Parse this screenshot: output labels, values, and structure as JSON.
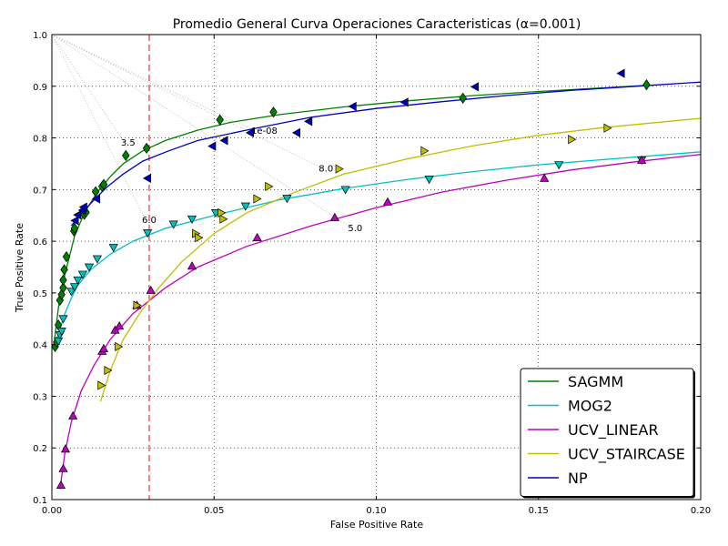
{
  "chart_data": {
    "type": "line",
    "title": "Promedio General Curva Operaciones Caracteristicas (α=0.001)",
    "xlabel": "False Positive Rate",
    "ylabel": "True Positive Rate",
    "xlim": [
      0.0,
      0.2
    ],
    "ylim": [
      0.1,
      1.0
    ],
    "xticks": [
      "0.00",
      "0.05",
      "0.10",
      "0.15",
      "0.20"
    ],
    "yticks": [
      "0.1",
      "0.2",
      "0.3",
      "0.4",
      "0.5",
      "0.6",
      "0.7",
      "0.8",
      "0.9",
      "1.0"
    ],
    "grid": true,
    "legend_position": "bottom-right",
    "vline": {
      "x": 0.03,
      "color": "#ff0000",
      "style": "dashed"
    },
    "series": [
      {
        "name": "SAGMM",
        "color": "#008000",
        "marker": "diamond",
        "curve": [
          [
            0.0005,
            0.39
          ],
          [
            0.001,
            0.42
          ],
          [
            0.002,
            0.47
          ],
          [
            0.003,
            0.51
          ],
          [
            0.005,
            0.56
          ],
          [
            0.007,
            0.61
          ],
          [
            0.01,
            0.655
          ],
          [
            0.014,
            0.695
          ],
          [
            0.018,
            0.725
          ],
          [
            0.022,
            0.75
          ],
          [
            0.028,
            0.775
          ],
          [
            0.035,
            0.795
          ],
          [
            0.045,
            0.815
          ],
          [
            0.055,
            0.83
          ],
          [
            0.07,
            0.845
          ],
          [
            0.09,
            0.86
          ],
          [
            0.11,
            0.872
          ],
          [
            0.13,
            0.882
          ],
          [
            0.15,
            0.89
          ],
          [
            0.17,
            0.897
          ],
          [
            0.184,
            0.902
          ]
        ],
        "points": [
          [
            0.001,
            0.396
          ],
          [
            0.0015,
            0.405
          ],
          [
            0.002,
            0.438
          ],
          [
            0.0025,
            0.486
          ],
          [
            0.003,
            0.497
          ],
          [
            0.0035,
            0.51
          ],
          [
            0.0035,
            0.525
          ],
          [
            0.0038,
            0.545
          ],
          [
            0.0045,
            0.57
          ],
          [
            0.0068,
            0.62
          ],
          [
            0.007,
            0.625
          ],
          [
            0.01,
            0.652
          ],
          [
            0.0105,
            0.656
          ],
          [
            0.0135,
            0.696
          ],
          [
            0.0155,
            0.706
          ],
          [
            0.016,
            0.71
          ],
          [
            0.0228,
            0.766
          ],
          [
            0.0292,
            0.78
          ],
          [
            0.0518,
            0.835
          ],
          [
            0.0683,
            0.85
          ],
          [
            0.1267,
            0.877
          ],
          [
            0.1833,
            0.903
          ]
        ]
      },
      {
        "name": "MOG2",
        "color": "#00bfbf",
        "marker": "triangle-down",
        "curve": [
          [
            0.001,
            0.39
          ],
          [
            0.002,
            0.42
          ],
          [
            0.004,
            0.46
          ],
          [
            0.006,
            0.49
          ],
          [
            0.008,
            0.515
          ],
          [
            0.012,
            0.545
          ],
          [
            0.018,
            0.575
          ],
          [
            0.025,
            0.6
          ],
          [
            0.035,
            0.625
          ],
          [
            0.05,
            0.65
          ],
          [
            0.07,
            0.68
          ],
          [
            0.09,
            0.702
          ],
          [
            0.11,
            0.72
          ],
          [
            0.13,
            0.735
          ],
          [
            0.15,
            0.748
          ],
          [
            0.17,
            0.758
          ],
          [
            0.2,
            0.773
          ]
        ],
        "points": [
          [
            0.002,
            0.407
          ],
          [
            0.0025,
            0.419
          ],
          [
            0.003,
            0.426
          ],
          [
            0.0035,
            0.45
          ],
          [
            0.006,
            0.503
          ],
          [
            0.007,
            0.512
          ],
          [
            0.008,
            0.525
          ],
          [
            0.0095,
            0.536
          ],
          [
            0.0115,
            0.55
          ],
          [
            0.014,
            0.566
          ],
          [
            0.019,
            0.588
          ],
          [
            0.0295,
            0.616
          ],
          [
            0.0375,
            0.633
          ],
          [
            0.0432,
            0.643
          ],
          [
            0.0505,
            0.655
          ],
          [
            0.0597,
            0.668
          ],
          [
            0.0725,
            0.683
          ],
          [
            0.0905,
            0.7
          ],
          [
            0.1163,
            0.72
          ],
          [
            0.1563,
            0.748
          ],
          [
            0.1818,
            0.757
          ]
        ]
      },
      {
        "name": "UCV_LINEAR",
        "color": "#bf00bf",
        "marker": "triangle-up",
        "curve": [
          [
            0.0025,
            0.12
          ],
          [
            0.004,
            0.19
          ],
          [
            0.006,
            0.25
          ],
          [
            0.009,
            0.31
          ],
          [
            0.013,
            0.36
          ],
          [
            0.018,
            0.41
          ],
          [
            0.025,
            0.46
          ],
          [
            0.035,
            0.51
          ],
          [
            0.045,
            0.55
          ],
          [
            0.06,
            0.59
          ],
          [
            0.08,
            0.63
          ],
          [
            0.1,
            0.665
          ],
          [
            0.12,
            0.695
          ],
          [
            0.14,
            0.718
          ],
          [
            0.16,
            0.738
          ],
          [
            0.18,
            0.754
          ],
          [
            0.2,
            0.768
          ]
        ],
        "points": [
          [
            0.0028,
            0.128
          ],
          [
            0.0035,
            0.16
          ],
          [
            0.0042,
            0.198
          ],
          [
            0.0065,
            0.262
          ],
          [
            0.0155,
            0.387
          ],
          [
            0.016,
            0.392
          ],
          [
            0.0195,
            0.428
          ],
          [
            0.0208,
            0.436
          ],
          [
            0.0262,
            0.476
          ],
          [
            0.0305,
            0.505
          ],
          [
            0.0432,
            0.552
          ],
          [
            0.0633,
            0.607
          ],
          [
            0.0872,
            0.646
          ],
          [
            0.1035,
            0.676
          ],
          [
            0.1518,
            0.722
          ],
          [
            0.1818,
            0.757
          ]
        ]
      },
      {
        "name": "UCV_STAIRCASE",
        "color": "#bfbf00",
        "marker": "triangle-right",
        "curve": [
          [
            0.015,
            0.29
          ],
          [
            0.018,
            0.35
          ],
          [
            0.022,
            0.41
          ],
          [
            0.027,
            0.46
          ],
          [
            0.033,
            0.51
          ],
          [
            0.04,
            0.56
          ],
          [
            0.05,
            0.615
          ],
          [
            0.06,
            0.655
          ],
          [
            0.075,
            0.695
          ],
          [
            0.09,
            0.73
          ],
          [
            0.11,
            0.76
          ],
          [
            0.13,
            0.785
          ],
          [
            0.15,
            0.805
          ],
          [
            0.17,
            0.82
          ],
          [
            0.2,
            0.838
          ]
        ],
        "points": [
          [
            0.0152,
            0.321
          ],
          [
            0.0172,
            0.35
          ],
          [
            0.0205,
            0.396
          ],
          [
            0.0262,
            0.476
          ],
          [
            0.0443,
            0.615
          ],
          [
            0.0452,
            0.607
          ],
          [
            0.0528,
            0.643
          ],
          [
            0.0522,
            0.655
          ],
          [
            0.0632,
            0.682
          ],
          [
            0.0668,
            0.706
          ],
          [
            0.0885,
            0.74
          ],
          [
            0.1148,
            0.775
          ],
          [
            0.1602,
            0.797
          ],
          [
            0.1712,
            0.819
          ]
        ]
      },
      {
        "name": "NP",
        "color": "#0000bf",
        "marker": "triangle-left",
        "curve": [
          [
            0.006,
            0.63
          ],
          [
            0.008,
            0.645
          ],
          [
            0.01,
            0.66
          ],
          [
            0.013,
            0.68
          ],
          [
            0.017,
            0.705
          ],
          [
            0.022,
            0.73
          ],
          [
            0.028,
            0.755
          ],
          [
            0.036,
            0.775
          ],
          [
            0.045,
            0.795
          ],
          [
            0.06,
            0.815
          ],
          [
            0.08,
            0.84
          ],
          [
            0.1,
            0.857
          ],
          [
            0.12,
            0.87
          ],
          [
            0.14,
            0.882
          ],
          [
            0.16,
            0.892
          ],
          [
            0.18,
            0.9
          ],
          [
            0.2,
            0.908
          ]
        ],
        "points": [
          [
            0.0072,
            0.64
          ],
          [
            0.008,
            0.651
          ],
          [
            0.0095,
            0.66
          ],
          [
            0.0098,
            0.666
          ],
          [
            0.0138,
            0.682
          ],
          [
            0.0295,
            0.722
          ],
          [
            0.0495,
            0.784
          ],
          [
            0.0532,
            0.795
          ],
          [
            0.0612,
            0.81
          ],
          [
            0.0755,
            0.81
          ],
          [
            0.0792,
            0.832
          ],
          [
            0.0928,
            0.861
          ],
          [
            0.1088,
            0.869
          ],
          [
            0.1305,
            0.899
          ],
          [
            0.1755,
            0.925
          ]
        ]
      }
    ],
    "annotations": [
      {
        "text": "3.5",
        "x": 0.0235,
        "y": 0.785
      },
      {
        "text": "6.0",
        "x": 0.03,
        "y": 0.635
      },
      {
        "text": "1e-08",
        "x": 0.0655,
        "y": 0.808
      },
      {
        "text": "8.0",
        "x": 0.0845,
        "y": 0.735
      },
      {
        "text": "5.0",
        "x": 0.0935,
        "y": 0.62
      }
    ],
    "guide_lines": [
      {
        "from": [
          0.0,
          1.0
        ],
        "to": [
          0.0225,
          0.79
        ]
      },
      {
        "from": [
          0.0,
          1.0
        ],
        "to": [
          0.029,
          0.64
        ]
      },
      {
        "from": [
          0.0,
          1.0
        ],
        "to": [
          0.0625,
          0.814
        ]
      },
      {
        "from": [
          0.0,
          1.0
        ],
        "to": [
          0.0835,
          0.741
        ]
      },
      {
        "from": [
          0.0,
          1.0
        ],
        "to": [
          0.0925,
          0.625
        ]
      }
    ]
  }
}
